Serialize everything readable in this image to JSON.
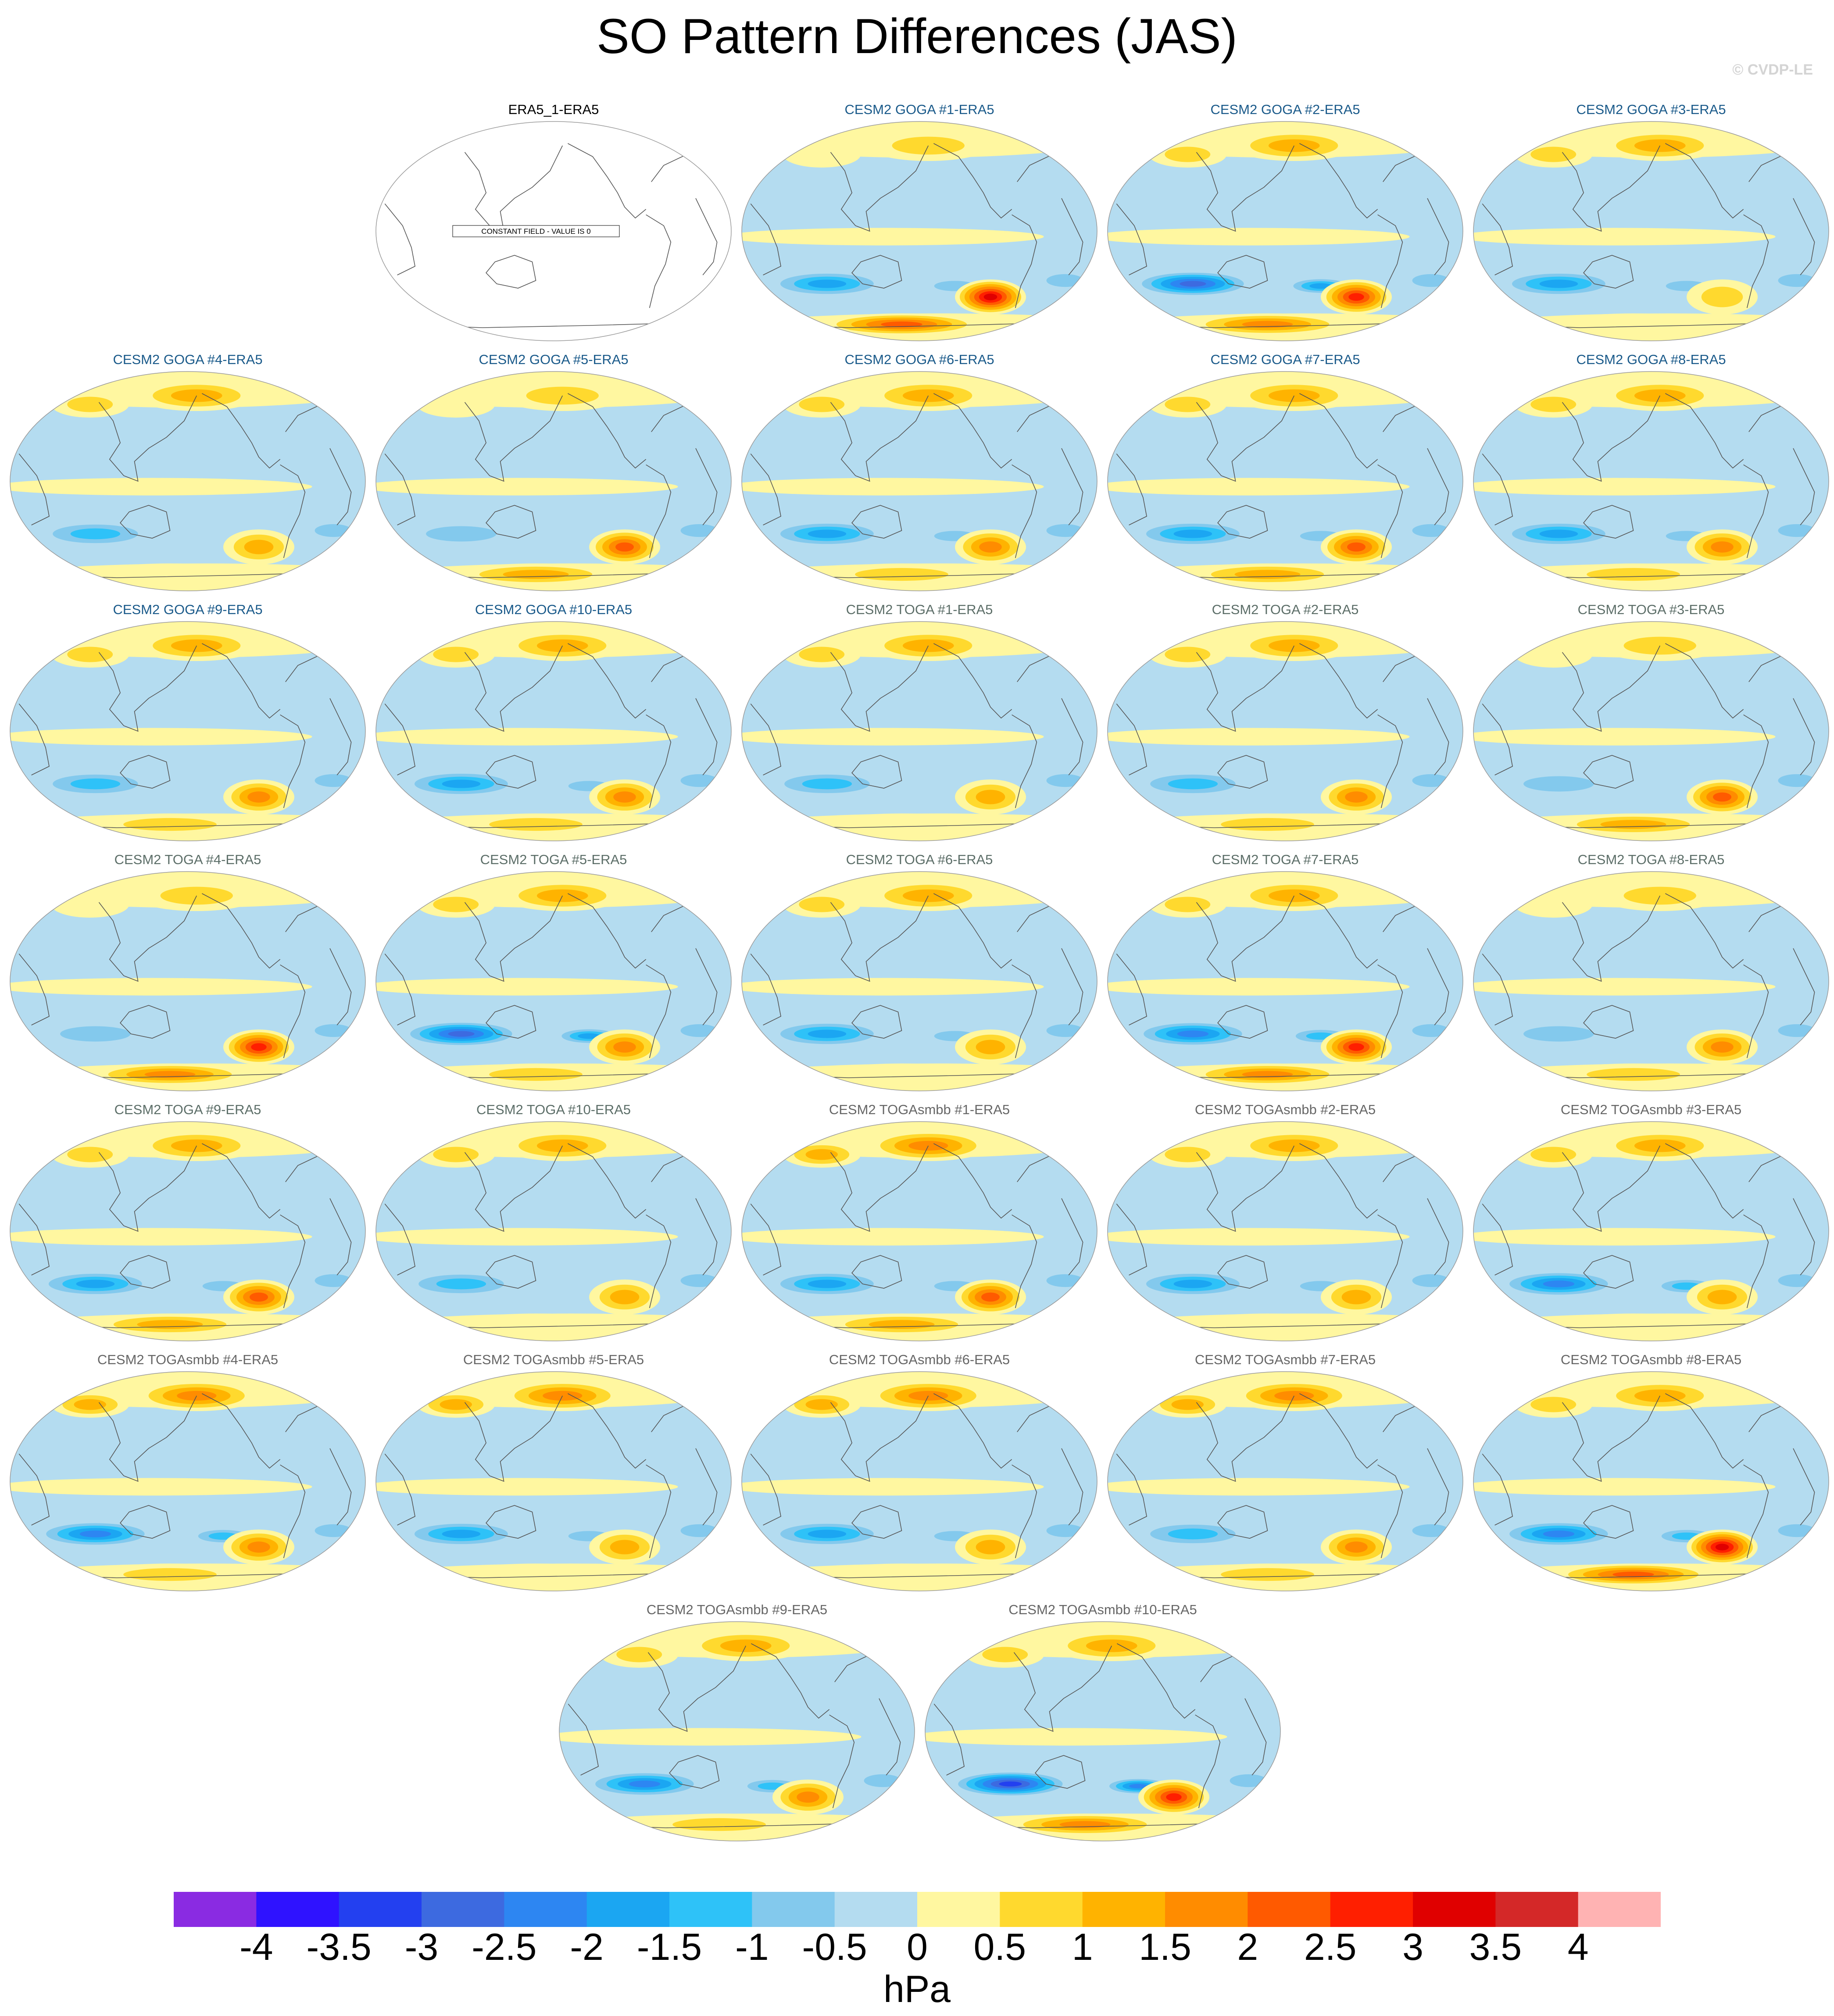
{
  "title": "SO Pattern Differences (JAS)",
  "copyright": "© CVDP-LE",
  "chart_data": {
    "type": "map-grid",
    "projection": "Robinson (Pacific-centered)",
    "units": "hPa",
    "colorbar": {
      "levels": [
        -4,
        -3.5,
        -3,
        -2.5,
        -2,
        -1.5,
        -1,
        -0.5,
        0,
        0.5,
        1,
        1.5,
        2,
        2.5,
        3,
        3.5,
        4
      ],
      "labels": [
        "-4",
        "-3.5",
        "-3",
        "-2.5",
        "-2",
        "-1.5",
        "-1",
        "-0.5",
        "0",
        "0.5",
        "1",
        "1.5",
        "2",
        "2.5",
        "3",
        "3.5",
        "4"
      ],
      "colors": [
        "#8a2be2",
        "#2f12ff",
        "#2340f0",
        "#3d6ae0",
        "#2d86f2",
        "#1ba6f2",
        "#2ec2f8",
        "#83c9ed",
        "#b4dcf0",
        "#fff7a0",
        "#ffd92e",
        "#ffb300",
        "#ff8c00",
        "#ff5a00",
        "#ff1f00",
        "#e00000",
        "#d42828",
        "#ffb3b3"
      ]
    },
    "panels": [
      {
        "title": "ERA5_1-ERA5",
        "group": "ref",
        "note": "CONSTANT FIELD - VALUE IS 0"
      },
      {
        "title": "CESM2 GOGA #1-ERA5",
        "group": "goga",
        "sh_pacific_min": -2,
        "south_atlantic_max": 3.5,
        "north_max": 1
      },
      {
        "title": "CESM2 GOGA #2-ERA5",
        "group": "goga",
        "sh_pacific_min": -3,
        "south_atlantic_max": 3,
        "north_max": 1.5
      },
      {
        "title": "CESM2 GOGA #3-ERA5",
        "group": "goga",
        "sh_pacific_min": -2,
        "south_atlantic_max": 1,
        "north_max": 1.5
      },
      {
        "title": "CESM2 GOGA #4-ERA5",
        "group": "goga",
        "sh_pacific_min": -1.5,
        "south_atlantic_max": 1.5,
        "north_max": 1.5
      },
      {
        "title": "CESM2 GOGA #5-ERA5",
        "group": "goga",
        "sh_pacific_min": -1,
        "south_atlantic_max": 2.5,
        "north_max": 1
      },
      {
        "title": "CESM2 GOGA #6-ERA5",
        "group": "goga",
        "sh_pacific_min": -2,
        "south_atlantic_max": 2,
        "north_max": 1.5
      },
      {
        "title": "CESM2 GOGA #7-ERA5",
        "group": "goga",
        "sh_pacific_min": -2,
        "south_atlantic_max": 2.5,
        "north_max": 1.5
      },
      {
        "title": "CESM2 GOGA #8-ERA5",
        "group": "goga",
        "sh_pacific_min": -2,
        "south_atlantic_max": 2,
        "north_max": 1.5
      },
      {
        "title": "CESM2 GOGA #9-ERA5",
        "group": "goga",
        "sh_pacific_min": -1.5,
        "south_atlantic_max": 2,
        "north_max": 1.5
      },
      {
        "title": "CESM2 GOGA #10-ERA5",
        "group": "goga",
        "sh_pacific_min": -2,
        "south_atlantic_max": 2,
        "north_max": 1.5
      },
      {
        "title": "CESM2 TOGA #1-ERA5",
        "group": "toga",
        "sh_pacific_min": -1.5,
        "south_atlantic_max": 1.5,
        "north_max": 1.5
      },
      {
        "title": "CESM2 TOGA #2-ERA5",
        "group": "toga",
        "sh_pacific_min": -1.5,
        "south_atlantic_max": 2,
        "north_max": 1.5
      },
      {
        "title": "CESM2 TOGA #3-ERA5",
        "group": "toga",
        "sh_pacific_min": -1,
        "south_atlantic_max": 2.5,
        "north_max": 1
      },
      {
        "title": "CESM2 TOGA #4-ERA5",
        "group": "toga",
        "sh_pacific_min": -1,
        "south_atlantic_max": 3,
        "north_max": 1
      },
      {
        "title": "CESM2 TOGA #5-ERA5",
        "group": "toga",
        "sh_pacific_min": -3,
        "south_atlantic_max": 2,
        "north_max": 1.5
      },
      {
        "title": "CESM2 TOGA #6-ERA5",
        "group": "toga",
        "sh_pacific_min": -2,
        "south_atlantic_max": 1.5,
        "north_max": 1.5
      },
      {
        "title": "CESM2 TOGA #7-ERA5",
        "group": "toga",
        "sh_pacific_min": -2.5,
        "south_atlantic_max": 3,
        "north_max": 1.5
      },
      {
        "title": "CESM2 TOGA #8-ERA5",
        "group": "toga",
        "sh_pacific_min": -1,
        "south_atlantic_max": 2,
        "north_max": 1
      },
      {
        "title": "CESM2 TOGA #9-ERA5",
        "group": "toga",
        "sh_pacific_min": -2,
        "south_atlantic_max": 2.5,
        "north_max": 1.5
      },
      {
        "title": "CESM2 TOGA #10-ERA5",
        "group": "toga",
        "sh_pacific_min": -1.5,
        "south_atlantic_max": 1.5,
        "north_max": 1.5
      },
      {
        "title": "CESM2 TOGAsmbb #1-ERA5",
        "group": "smbb",
        "sh_pacific_min": -2,
        "south_atlantic_max": 2.5,
        "north_max": 2
      },
      {
        "title": "CESM2 TOGAsmbb #2-ERA5",
        "group": "smbb",
        "sh_pacific_min": -2,
        "south_atlantic_max": 1.5,
        "north_max": 1.5
      },
      {
        "title": "CESM2 TOGAsmbb #3-ERA5",
        "group": "smbb",
        "sh_pacific_min": -2.5,
        "south_atlantic_max": 1.5,
        "north_max": 1.5
      },
      {
        "title": "CESM2 TOGAsmbb #4-ERA5",
        "group": "smbb",
        "sh_pacific_min": -2.5,
        "south_atlantic_max": 2,
        "north_max": 2
      },
      {
        "title": "CESM2 TOGAsmbb #5-ERA5",
        "group": "smbb",
        "sh_pacific_min": -2,
        "south_atlantic_max": 1.5,
        "north_max": 2
      },
      {
        "title": "CESM2 TOGAsmbb #6-ERA5",
        "group": "smbb",
        "sh_pacific_min": -2,
        "south_atlantic_max": 1.5,
        "north_max": 2
      },
      {
        "title": "CESM2 TOGAsmbb #7-ERA5",
        "group": "smbb",
        "sh_pacific_min": -1.5,
        "south_atlantic_max": 2,
        "north_max": 2
      },
      {
        "title": "CESM2 TOGAsmbb #8-ERA5",
        "group": "smbb",
        "sh_pacific_min": -2.5,
        "south_atlantic_max": 3.5,
        "north_max": 1.5
      },
      {
        "title": "CESM2 TOGAsmbb #9-ERA5",
        "group": "smbb",
        "sh_pacific_min": -2.5,
        "south_atlantic_max": 2,
        "north_max": 1.5
      },
      {
        "title": "CESM2 TOGAsmbb #10-ERA5",
        "group": "smbb",
        "sh_pacific_min": -3.5,
        "south_atlantic_max": 3,
        "north_max": 1.5
      }
    ]
  }
}
